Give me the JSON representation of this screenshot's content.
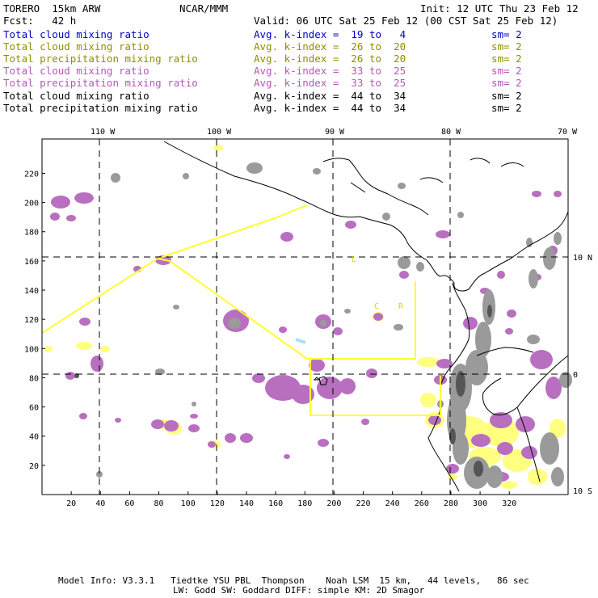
{
  "header": {
    "model": "TORERO  15km ARW",
    "center": "NCAR/MMM",
    "init": "Init: 12 UTC Thu 23 Feb 12",
    "fcst": "Fcst:   42 h",
    "valid": "Valid: 06 UTC Sat 25 Feb 12 (00 CST Sat 25 Feb 12)"
  },
  "legend": [
    {
      "field": "Total cloud mixing ratio",
      "index": "Avg. k-index =  19 to   4",
      "sm": "sm= 2",
      "color": "#0000cc"
    },
    {
      "field": "Total cloud mixing ratio",
      "index": "Avg. k-index =  26 to  20",
      "sm": "sm= 2",
      "color": "#8f8f00"
    },
    {
      "field": "Total precipitation mixing ratio",
      "index": "Avg. k-index =  26 to  20",
      "sm": "sm= 2",
      "color": "#8f8f00"
    },
    {
      "field": "Total cloud mixing ratio",
      "index": "Avg. k-index =  33 to  25",
      "sm": "sm= 2",
      "color": "#b25ab2"
    },
    {
      "field": "Total precipitation mixing ratio",
      "index": "Avg. k-index =  33 to  25",
      "sm": "sm= 2",
      "color": "#b25ab2"
    },
    {
      "field": "Total cloud mixing ratio",
      "index": "Avg. k-index =  44 to  34",
      "sm": "sm= 2",
      "color": "#000000"
    },
    {
      "field": "Total precipitation mixing ratio",
      "index": "Avg. k-index =  44 to  34",
      "sm": "sm= 2",
      "color": "#000000"
    }
  ],
  "axes": {
    "top_labels": [
      "110 W",
      "100 W",
      "90 W",
      "80 W",
      "70 W"
    ],
    "right_labels": [
      "10 N",
      "0",
      "10 S"
    ],
    "left_ticks": [
      "220",
      "200",
      "180",
      "160",
      "140",
      "120",
      "100",
      "80",
      "60",
      "40",
      "20"
    ],
    "bottom_ticks": [
      "20",
      "40",
      "60",
      "80",
      "100",
      "120",
      "140",
      "160",
      "180",
      "200",
      "220",
      "240",
      "260",
      "280",
      "300",
      "320"
    ]
  },
  "map_labels": {
    "c_label": "C",
    "r_label": "R",
    "l_label": "L"
  },
  "colors": {
    "precip_purple": "#b86fc0",
    "cloud_gray": "#9a9a9a",
    "yellow": "#ffff80",
    "yellow_line": "#ffff33",
    "coast": "#000000"
  },
  "footer": {
    "line1": "Model Info: V3.3.1   Tiedtke YSU PBL  Thompson    Noah LSM  15 km,   44 levels,   86 sec",
    "line2": "LW: Godd SW: Goddard DIFF: simple KM: 2D Smagor"
  }
}
